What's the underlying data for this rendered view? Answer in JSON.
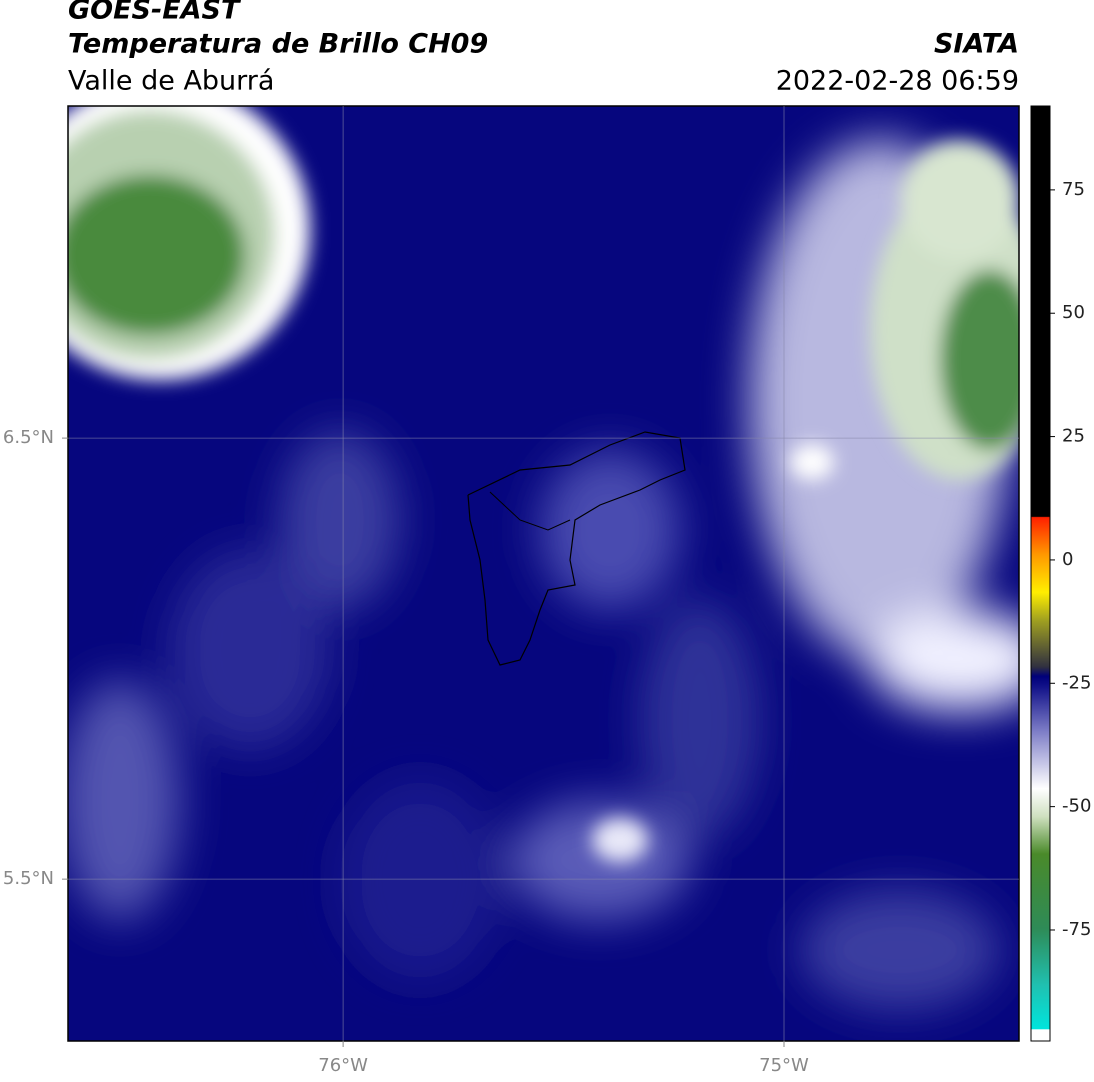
{
  "header": {
    "title": "GOES-EAST",
    "subtitle": "Temperatura de Brillo CH09",
    "region": "Valle de Aburrá",
    "source": "SIATA",
    "datetime": "2022-02-28 06:59"
  },
  "map": {
    "lon_range": [
      -76.624,
      -74.467
    ],
    "lat_range": [
      5.133,
      7.253
    ],
    "lon_ticks": [
      {
        "value": -76,
        "label": "76°W"
      },
      {
        "value": -75,
        "label": "75°W"
      }
    ],
    "lat_ticks": [
      {
        "value": 6.5,
        "label": "6.5°N"
      },
      {
        "value": 5.5,
        "label": "5.5°N"
      }
    ]
  },
  "colorbar": {
    "range": [
      -97.5,
      92
    ],
    "ticks": [
      75,
      50,
      25,
      0,
      -25,
      -50,
      -75
    ]
  }
}
